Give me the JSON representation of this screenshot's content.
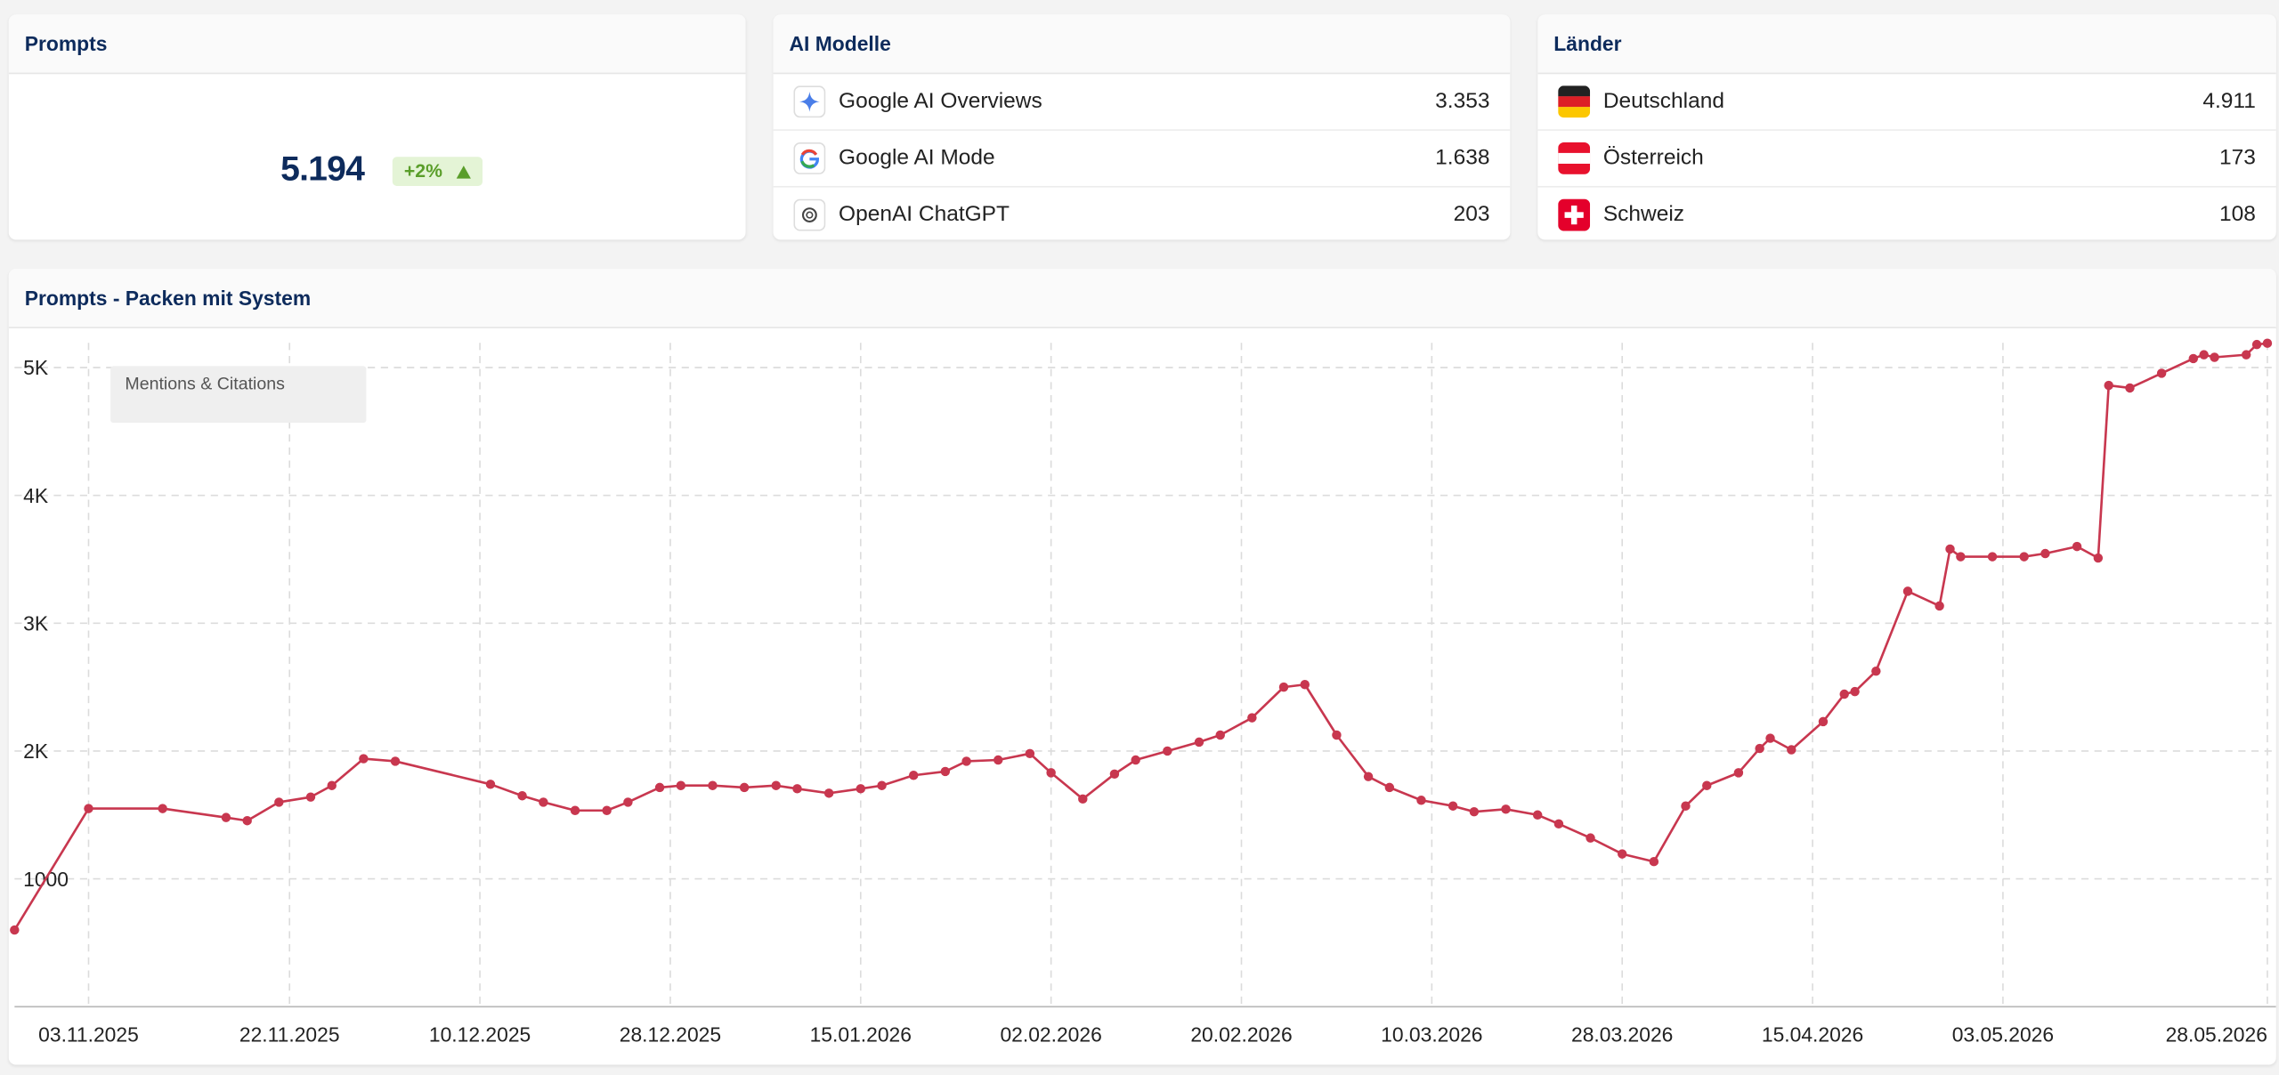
{
  "prompts_card": {
    "title": "Prompts",
    "value": "5.194",
    "change": "+2%"
  },
  "ai_models": {
    "title": "AI Modelle",
    "rows": [
      {
        "name": "Google AI Overviews",
        "value": "3.353"
      },
      {
        "name": "Google AI Mode",
        "value": "1.638"
      },
      {
        "name": "OpenAI ChatGPT",
        "value": "203"
      }
    ]
  },
  "countries": {
    "title": "Länder",
    "rows": [
      {
        "name": "Deutschland",
        "value": "4.911"
      },
      {
        "name": "Österreich",
        "value": "173"
      },
      {
        "name": "Schweiz",
        "value": "108"
      }
    ]
  },
  "chart_data": {
    "type": "line",
    "title": "Prompts - Packen mit System",
    "x": [
      "27.10.2025",
      "03.11.2025",
      "10.11.2025",
      "16.11.2025",
      "18.11.2025",
      "21.11.2025",
      "24.11.2025",
      "26.11.2025",
      "29.11.2025",
      "02.12.2025",
      "11.12.2025",
      "14.12.2025",
      "16.12.2025",
      "19.12.2025",
      "22.12.2025",
      "24.12.2025",
      "27.12.2025",
      "29.12.2025",
      "01.01.2026",
      "04.01.2026",
      "07.01.2026",
      "09.01.2026",
      "12.01.2026",
      "15.01.2026",
      "17.01.2026",
      "20.01.2026",
      "23.01.2026",
      "25.01.2026",
      "28.01.2026",
      "31.01.2026",
      "02.02.2026",
      "05.02.2026",
      "08.02.2026",
      "10.02.2026",
      "13.02.2026",
      "16.02.2026",
      "18.02.2026",
      "21.02.2026",
      "24.02.2026",
      "26.02.2026",
      "01.03.2026",
      "04.03.2026",
      "06.03.2026",
      "09.03.2026",
      "12.03.2026",
      "14.03.2026",
      "17.03.2026",
      "20.03.2026",
      "22.03.2026",
      "25.03.2026",
      "28.03.2026",
      "31.03.2026",
      "03.04.2026",
      "05.04.2026",
      "08.04.2026",
      "10.04.2026",
      "11.04.2026",
      "13.04.2026",
      "16.04.2026",
      "18.04.2026",
      "19.04.2026",
      "21.04.2026",
      "24.04.2026",
      "27.04.2026",
      "28.04.2026",
      "29.04.2026",
      "02.05.2026",
      "05.05.2026",
      "07.05.2026",
      "10.05.2026",
      "12.05.2026",
      "13.05.2026",
      "15.05.2026",
      "18.05.2026",
      "21.05.2026",
      "22.05.2026",
      "23.05.2026",
      "26.05.2026",
      "27.05.2026",
      "28.05.2026"
    ],
    "series": [
      {
        "name": "Mentions & Citations",
        "color": "#c8374f",
        "values": [
          600,
          1550,
          1550,
          1480,
          1455,
          1600,
          1640,
          1730,
          1940,
          1920,
          1740,
          1650,
          1600,
          1535,
          1535,
          1600,
          1715,
          1730,
          1730,
          1715,
          1730,
          1705,
          1670,
          1705,
          1730,
          1810,
          1840,
          1920,
          1930,
          1980,
          1830,
          1625,
          1820,
          1930,
          2000,
          2070,
          2125,
          2260,
          2500,
          2520,
          2125,
          1800,
          1715,
          1615,
          1570,
          1525,
          1545,
          1500,
          1430,
          1320,
          1195,
          1135,
          1570,
          1730,
          1830,
          2020,
          2100,
          2010,
          2230,
          2445,
          2465,
          2625,
          3250,
          3135,
          3580,
          3520,
          3520,
          3520,
          3545,
          3600,
          3510,
          4860,
          4840,
          4955,
          5070,
          5100,
          5080,
          5100,
          5180,
          5190
        ]
      }
    ],
    "xlim": [
      "27.10.2025",
      "28.05.2026"
    ],
    "xticks": [
      "03.11.2025",
      "22.11.2025",
      "10.12.2025",
      "28.12.2025",
      "15.01.2026",
      "02.02.2026",
      "20.02.2026",
      "10.03.2026",
      "28.03.2026",
      "15.04.2026",
      "03.05.2026",
      "28.05.2026"
    ],
    "ylim": [
      0,
      5250
    ],
    "yticks": [
      1000,
      {
        "value": 2000,
        "label": "2K"
      },
      {
        "value": 3000,
        "label": "3K"
      },
      {
        "value": 4000,
        "label": "4K"
      },
      {
        "value": 5000,
        "label": "5K"
      }
    ],
    "grid": true
  }
}
